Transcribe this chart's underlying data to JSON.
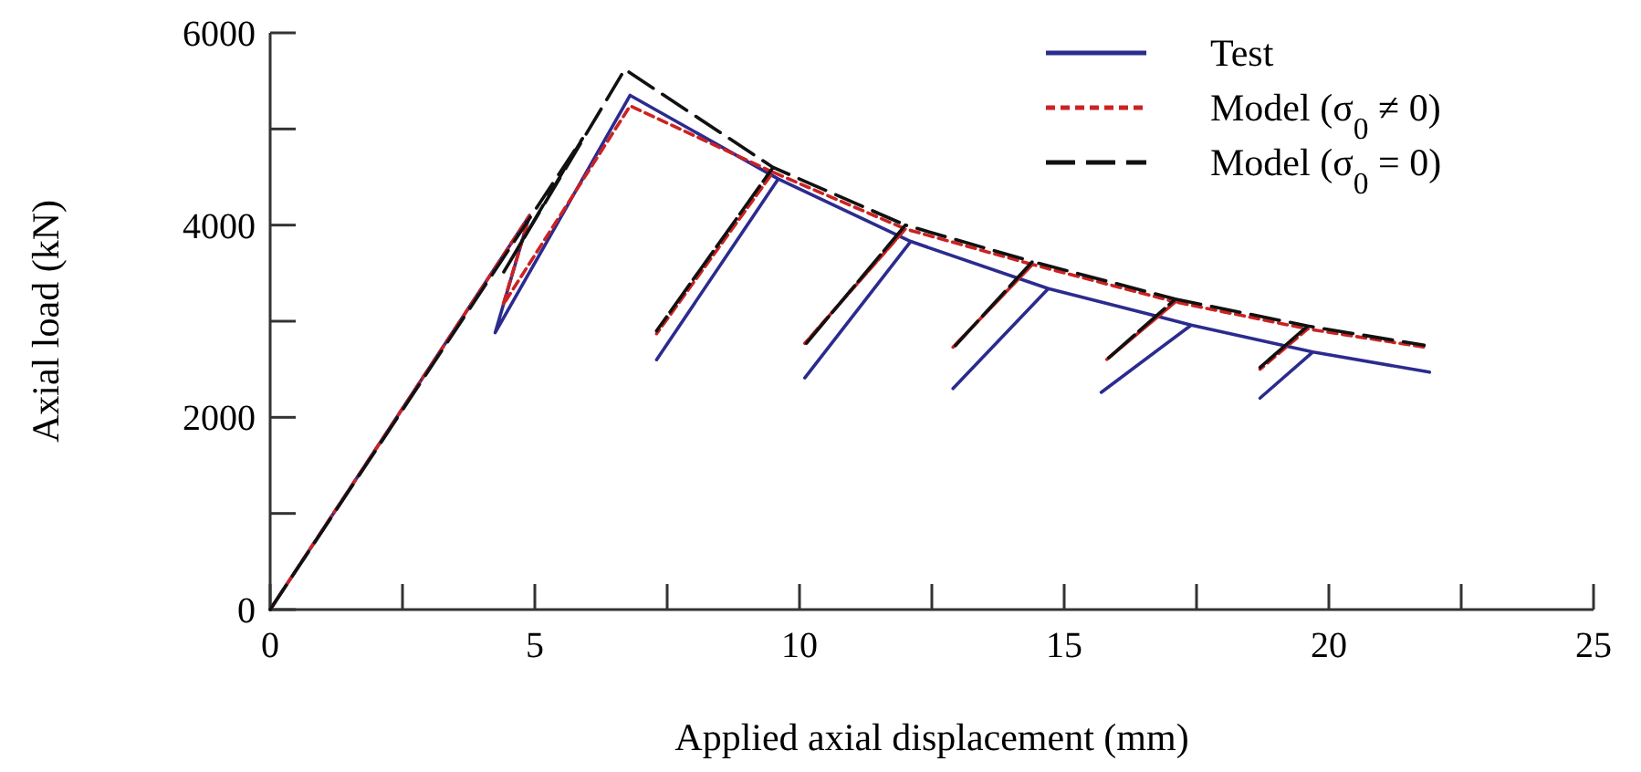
{
  "chart_data": {
    "type": "line",
    "xlabel": "Applied axial displacement (mm)",
    "ylabel": "Axial load (kN)",
    "xlim": [
      0,
      25
    ],
    "ylim": [
      0,
      6000
    ],
    "xticks": [
      0,
      {
        "value": 2.5,
        "label": null
      },
      5,
      {
        "value": 7.5,
        "label": null
      },
      10,
      {
        "value": 12.5,
        "label": null
      },
      15,
      {
        "value": 17.5,
        "label": null
      },
      20,
      {
        "value": 22.5,
        "label": null
      },
      25
    ],
    "yticks": [
      0,
      {
        "value": 1000,
        "label": null
      },
      2000,
      {
        "value": 3000,
        "label": null
      },
      4000,
      {
        "value": 5000,
        "label": null
      },
      6000
    ],
    "grid": false,
    "legend": "top right",
    "marker": "none",
    "series": [
      {
        "name": "Test",
        "color": "#2b2b8f",
        "line_style": "solid",
        "x": [
          0,
          4.9,
          4.25,
          6.8,
          9.6,
          7.3,
          9.6,
          12.1,
          10.1,
          12.1,
          14.7,
          12.9,
          14.7,
          17.4,
          15.7,
          17.4,
          19.7,
          18.7,
          19.7,
          21.9
        ],
        "values": [
          0,
          4100,
          2880,
          5350,
          4480,
          2600,
          4480,
          3830,
          2410,
          3830,
          3340,
          2300,
          3340,
          2960,
          2260,
          2960,
          2680,
          2200,
          2680,
          2470
        ]
      },
      {
        "name": "Model (σ$_{0}$ ≠ 0)",
        "color": "#cc2222",
        "line_style": "dotted",
        "x": [
          0,
          4.9,
          4.4,
          6.8,
          9.5,
          7.3,
          9.5,
          12,
          10.1,
          12,
          14.4,
          12.9,
          14.4,
          17.1,
          15.8,
          17.1,
          19.6,
          18.7,
          19.6,
          21.8
        ],
        "values": [
          0,
          4100,
          3170,
          5240,
          4550,
          2870,
          4550,
          3960,
          2770,
          3960,
          3590,
          2730,
          3590,
          3200,
          2600,
          3200,
          2920,
          2500,
          2920,
          2730
        ]
      },
      {
        "name": "Model (σ$_{0}$ = 0)",
        "color": "#111111",
        "line_style": "dashed",
        "x": [
          0,
          5.9,
          4.4,
          6.7,
          9.5,
          7.3,
          9.5,
          12,
          10.1,
          12,
          14.4,
          12.9,
          14.4,
          17.1,
          15.8,
          17.1,
          19.6,
          18.7,
          19.6,
          21.8
        ],
        "values": [
          0,
          4900,
          3500,
          5620,
          4600,
          2900,
          4600,
          4000,
          2750,
          4000,
          3620,
          2720,
          3620,
          3230,
          2600,
          3230,
          2950,
          2520,
          2950,
          2750
        ]
      }
    ]
  }
}
